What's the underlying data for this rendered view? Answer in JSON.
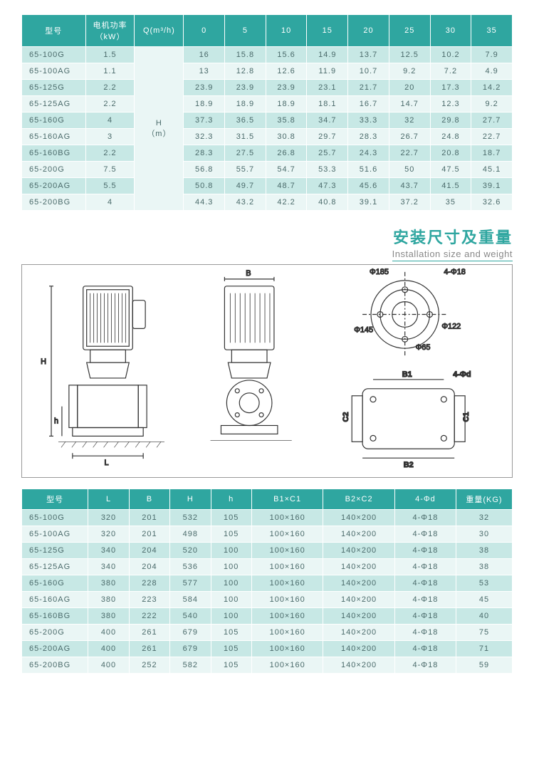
{
  "colors": {
    "teal_header": "#2fa6a0",
    "row_light": "#c7e8e5",
    "row_lighter": "#eaf6f5",
    "text": "#4a6a6a",
    "border": "#ffffff"
  },
  "table1": {
    "headers": {
      "model": "型号",
      "power": "电机功率\n（kW）",
      "q": "Q(m³/h)",
      "h_unit": "H\n（m）",
      "flow_cols": [
        "0",
        "5",
        "10",
        "15",
        "20",
        "25",
        "30",
        "35"
      ]
    },
    "rows": [
      {
        "model": "65-100G",
        "kw": "1.5",
        "vals": [
          "16",
          "15.8",
          "15.6",
          "14.9",
          "13.7",
          "12.5",
          "10.2",
          "7.9"
        ]
      },
      {
        "model": "65-100AG",
        "kw": "1.1",
        "vals": [
          "13",
          "12.8",
          "12.6",
          "11.9",
          "10.7",
          "9.2",
          "7.2",
          "4.9"
        ]
      },
      {
        "model": "65-125G",
        "kw": "2.2",
        "vals": [
          "23.9",
          "23.9",
          "23.9",
          "23.1",
          "21.7",
          "20",
          "17.3",
          "14.2"
        ]
      },
      {
        "model": "65-125AG",
        "kw": "2.2",
        "vals": [
          "18.9",
          "18.9",
          "18.9",
          "18.1",
          "16.7",
          "14.7",
          "12.3",
          "9.2"
        ]
      },
      {
        "model": "65-160G",
        "kw": "4",
        "vals": [
          "37.3",
          "36.5",
          "35.8",
          "34.7",
          "33.3",
          "32",
          "29.8",
          "27.7"
        ]
      },
      {
        "model": "65-160AG",
        "kw": "3",
        "vals": [
          "32.3",
          "31.5",
          "30.8",
          "29.7",
          "28.3",
          "26.7",
          "24.8",
          "22.7"
        ]
      },
      {
        "model": "65-160BG",
        "kw": "2.2",
        "vals": [
          "28.3",
          "27.5",
          "26.8",
          "25.7",
          "24.3",
          "22.7",
          "20.8",
          "18.7"
        ]
      },
      {
        "model": "65-200G",
        "kw": "7.5",
        "vals": [
          "56.8",
          "55.7",
          "54.7",
          "53.3",
          "51.6",
          "50",
          "47.5",
          "45.1"
        ]
      },
      {
        "model": "65-200AG",
        "kw": "5.5",
        "vals": [
          "50.8",
          "49.7",
          "48.7",
          "47.3",
          "45.6",
          "43.7",
          "41.5",
          "39.1"
        ]
      },
      {
        "model": "65-200BG",
        "kw": "4",
        "vals": [
          "44.3",
          "43.2",
          "42.2",
          "40.8",
          "39.1",
          "37.2",
          "35",
          "32.6"
        ]
      }
    ]
  },
  "section": {
    "cn": "安装尺寸及重量",
    "en": "Installation size and weight"
  },
  "diagram_labels": {
    "H": "H",
    "h": "h",
    "L": "L",
    "B": "B",
    "B1": "B1",
    "B2": "B2",
    "C1": "C1",
    "C2": "C2",
    "4phid": "4-Φd",
    "phi185": "Φ185",
    "4phi18": "4-Φ18",
    "phi145": "Φ145",
    "phi122": "Φ122",
    "phi65": "Φ65"
  },
  "table2": {
    "headers": {
      "model": "型号",
      "L": "L",
      "B": "B",
      "H": "H",
      "h": "h",
      "b1c1": "B1×C1",
      "b2c2": "B2×C2",
      "fourd": "4-Φd",
      "kg": "重量(KG)"
    },
    "rows": [
      {
        "model": "65-100G",
        "L": "320",
        "B": "201",
        "H": "532",
        "h": "105",
        "b1c1": "100×160",
        "b2c2": "140×200",
        "d": "4-Φ18",
        "kg": "32"
      },
      {
        "model": "65-100AG",
        "L": "320",
        "B": "201",
        "H": "498",
        "h": "105",
        "b1c1": "100×160",
        "b2c2": "140×200",
        "d": "4-Φ18",
        "kg": "30"
      },
      {
        "model": "65-125G",
        "L": "340",
        "B": "204",
        "H": "520",
        "h": "100",
        "b1c1": "100×160",
        "b2c2": "140×200",
        "d": "4-Φ18",
        "kg": "38"
      },
      {
        "model": "65-125AG",
        "L": "340",
        "B": "204",
        "H": "536",
        "h": "100",
        "b1c1": "100×160",
        "b2c2": "140×200",
        "d": "4-Φ18",
        "kg": "38"
      },
      {
        "model": "65-160G",
        "L": "380",
        "B": "228",
        "H": "577",
        "h": "100",
        "b1c1": "100×160",
        "b2c2": "140×200",
        "d": "4-Φ18",
        "kg": "53"
      },
      {
        "model": "65-160AG",
        "L": "380",
        "B": "223",
        "H": "584",
        "h": "100",
        "b1c1": "100×160",
        "b2c2": "140×200",
        "d": "4-Φ18",
        "kg": "45"
      },
      {
        "model": "65-160BG",
        "L": "380",
        "B": "222",
        "H": "540",
        "h": "100",
        "b1c1": "100×160",
        "b2c2": "140×200",
        "d": "4-Φ18",
        "kg": "40"
      },
      {
        "model": "65-200G",
        "L": "400",
        "B": "261",
        "H": "679",
        "h": "105",
        "b1c1": "100×160",
        "b2c2": "140×200",
        "d": "4-Φ18",
        "kg": "75"
      },
      {
        "model": "65-200AG",
        "L": "400",
        "B": "261",
        "H": "679",
        "h": "105",
        "b1c1": "100×160",
        "b2c2": "140×200",
        "d": "4-Φ18",
        "kg": "71"
      },
      {
        "model": "65-200BG",
        "L": "400",
        "B": "252",
        "H": "582",
        "h": "105",
        "b1c1": "100×160",
        "b2c2": "140×200",
        "d": "4-Φ18",
        "kg": "59"
      }
    ]
  }
}
